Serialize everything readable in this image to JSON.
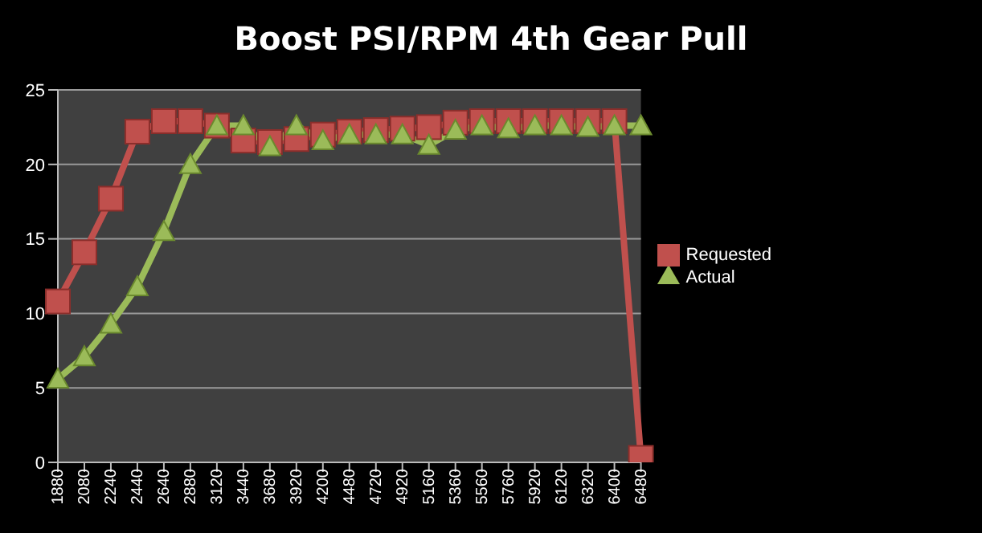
{
  "chart_data": {
    "type": "line",
    "title": "Boost PSI/RPM 4th Gear Pull",
    "categories": [
      "1880",
      "2080",
      "2240",
      "2440",
      "2640",
      "2880",
      "3120",
      "3440",
      "3680",
      "3920",
      "4200",
      "4480",
      "4720",
      "4920",
      "5160",
      "5360",
      "5560",
      "5760",
      "5920",
      "6120",
      "6320",
      "6400",
      "6480"
    ],
    "series": [
      {
        "name": "Requested",
        "color": "#c0504d",
        "marker": "square",
        "values": [
          10.8,
          14.1,
          17.7,
          22.2,
          22.9,
          22.9,
          22.6,
          21.6,
          21.5,
          21.7,
          22.0,
          22.2,
          22.3,
          22.4,
          22.5,
          22.8,
          22.9,
          22.9,
          22.9,
          22.9,
          22.9,
          22.9,
          0.3
        ]
      },
      {
        "name": "Actual",
        "color": "#9bbb59",
        "marker": "triangle",
        "values": [
          5.6,
          7.1,
          9.3,
          11.8,
          15.5,
          20.0,
          22.6,
          22.6,
          21.2,
          22.6,
          21.6,
          22.0,
          22.0,
          22.0,
          21.3,
          22.3,
          22.6,
          22.4,
          22.6,
          22.6,
          22.5,
          22.6,
          22.6
        ]
      }
    ],
    "ylim": [
      0,
      25
    ],
    "yticks": [
      0,
      5,
      10,
      15,
      20,
      25
    ],
    "grid": "y",
    "legend": "right",
    "line_style": "solid"
  }
}
